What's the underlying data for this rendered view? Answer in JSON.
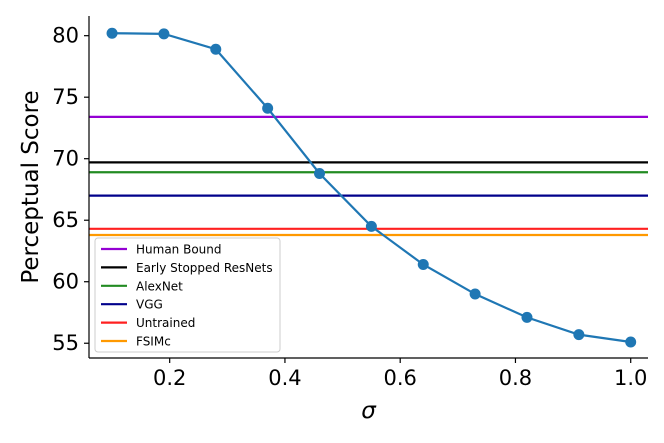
{
  "chart_data": {
    "type": "line",
    "xlabel": "σ",
    "ylabel": "Perceptual Score",
    "xlim": [
      0.06,
      1.03
    ],
    "ylim": [
      53.8,
      81.6
    ],
    "xticks": [
      0.2,
      0.4,
      0.6,
      0.8,
      1.0
    ],
    "xtick_labels": [
      "0.2",
      "0.4",
      "0.6",
      "0.8",
      "1.0"
    ],
    "yticks": [
      55,
      60,
      65,
      70,
      75,
      80
    ],
    "ytick_labels": [
      "55",
      "60",
      "65",
      "70",
      "75",
      "80"
    ],
    "grid": false,
    "legend_position": "lower-left",
    "series": [
      {
        "color": "#1f77b4",
        "x": [
          0.1,
          0.19,
          0.28,
          0.37,
          0.46,
          0.55,
          0.64,
          0.73,
          0.82,
          0.91,
          1.0
        ],
        "y": [
          80.2,
          80.15,
          78.9,
          74.1,
          68.8,
          64.5,
          61.4,
          59.0,
          57.1,
          55.7,
          55.1
        ]
      }
    ],
    "baselines": [
      {
        "name": "Human Bound",
        "value": 73.4,
        "color": "#9400d3"
      },
      {
        "name": "Early Stopped ResNets",
        "value": 69.7,
        "color": "#000000"
      },
      {
        "name": "AlexNet",
        "value": 68.9,
        "color": "#228b22"
      },
      {
        "name": "VGG",
        "value": 67.0,
        "color": "#00008b"
      },
      {
        "name": "Untrained",
        "value": 64.3,
        "color": "#ff2020"
      },
      {
        "name": "FSIMc",
        "value": 63.8,
        "color": "#ff9900"
      }
    ]
  }
}
